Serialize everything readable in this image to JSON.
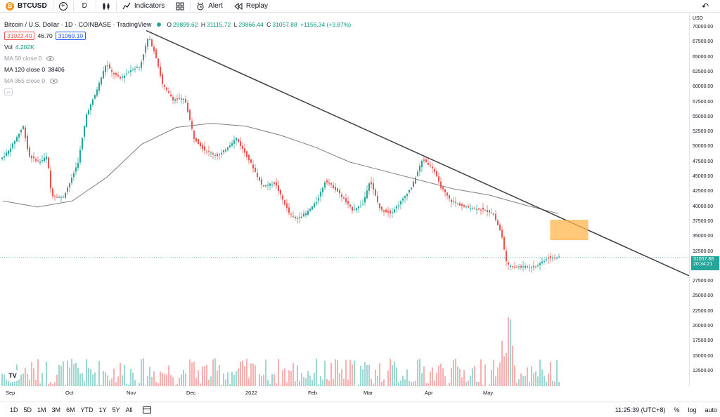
{
  "toolbar": {
    "symbol": "BTCUSD",
    "interval": "D",
    "indicators_label": "Indicators",
    "alert_label": "Alert",
    "replay_label": "Replay"
  },
  "legend": {
    "title": "Bitcoin / U.S. Dollar · 1D · COINBASE · TradingView",
    "o_label": "O",
    "open": "29899.62",
    "h_label": "H",
    "high": "31115.72",
    "l_label": "L",
    "low": "29866.44",
    "c_label": "C",
    "close": "31057.88",
    "change": "+1156.34 (+3.87%)",
    "bid": "31022.40",
    "spread": "46.70",
    "ask": "31069.10",
    "vol_label": "Vol",
    "vol_value": "4.202K",
    "ma50_label": "MA 50 close 0",
    "ma120_label": "MA 120 close 0",
    "ma120_value": "38406",
    "ma365_label": "MA 365 close 0"
  },
  "price_scale": {
    "currency": "USD",
    "ticks": [
      "70000.00",
      "67500.00",
      "65000.00",
      "62500.00",
      "60000.00",
      "57500.00",
      "55000.00",
      "52500.00",
      "50000.00",
      "47500.00",
      "45000.00",
      "42500.00",
      "40000.00",
      "37500.00",
      "35000.00",
      "32500.00",
      "30000.00",
      "27500.00",
      "25000.00",
      "22500.00",
      "20000.00",
      "17500.00",
      "15000.00",
      "12500.00"
    ],
    "last_price": "31057.88",
    "countdown": "20:34:21"
  },
  "time_axis": {
    "labels": [
      "Sep",
      "Oct",
      "Nov",
      "Dec",
      "2022",
      "Feb",
      "Mar",
      "Apr",
      "May"
    ]
  },
  "bottom_bar": {
    "ranges": [
      "1D",
      "5D",
      "1M",
      "3M",
      "6M",
      "YTD",
      "1Y",
      "5Y",
      "All"
    ],
    "clock": "11:25:39 (UTC+8)",
    "percent_label": "%",
    "log_label": "log",
    "auto_label": "auto"
  },
  "colors": {
    "up": "#26a69a",
    "down": "#ef5350",
    "trendline": "#3c3f47",
    "ma": "#808080",
    "zone": "#ffb74d",
    "accent": "#2962ff"
  },
  "chart_data": {
    "type": "candlestick",
    "ylim": [
      12500,
      70000
    ],
    "ma120": [
      40500,
      39500,
      40500,
      44500,
      50000,
      52800,
      53500,
      53000,
      51500,
      49500,
      47000,
      45500,
      44000,
      42500,
      41500,
      39900,
      38406
    ],
    "trendline": {
      "from_price": 69000,
      "to_price": 28000
    },
    "zone": {
      "top": 37300,
      "bottom": 34000
    }
  }
}
